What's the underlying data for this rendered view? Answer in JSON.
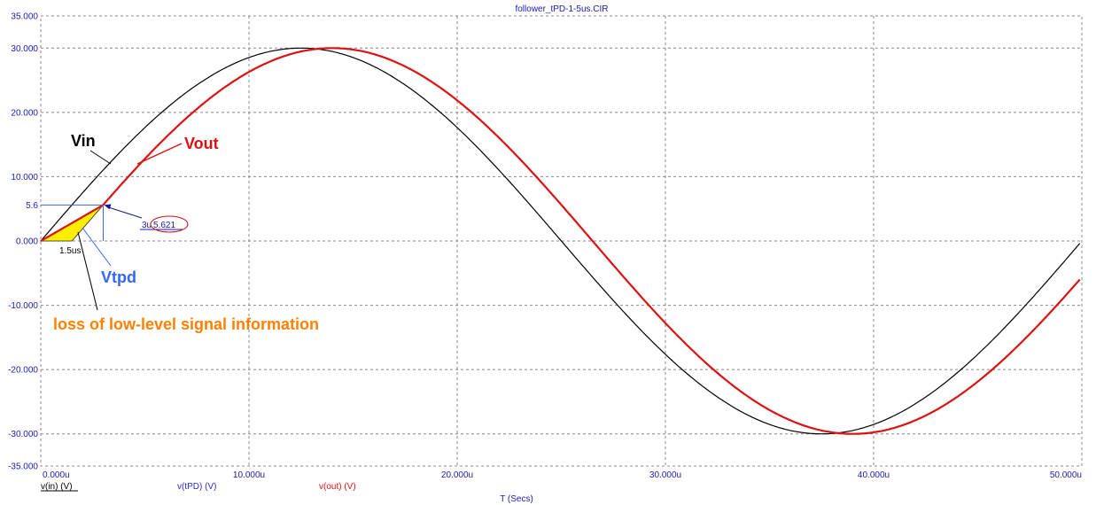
{
  "window": {
    "title": "follower_tPD-1-5us.CIR"
  },
  "chart_data": {
    "type": "line",
    "title": "follower_tPD-1-5us.CIR",
    "xlabel": "T (Secs)",
    "ylabel": "",
    "xlim": [
      0,
      50
    ],
    "ylim": [
      -35,
      35
    ],
    "x_unit": "us",
    "x_ticks": [
      0,
      10,
      20,
      30,
      40,
      50
    ],
    "x_tick_labels": [
      "0.000u",
      "10.000u",
      "20.000u",
      "30.000u",
      "40.000u",
      "50.000u"
    ],
    "y_ticks": [
      35,
      30,
      20,
      10,
      5.6,
      0,
      -10,
      -20,
      -30,
      -35
    ],
    "y_tick_labels": [
      "35.000",
      "30.000",
      "20.000",
      "10.000",
      "5.6",
      "0.000",
      "-10.000",
      "-20.000",
      "-30.000",
      "-35.000"
    ],
    "grid": true,
    "legend_placement": "bottom",
    "series": [
      {
        "name": "v(in) (V)",
        "color": "#000000",
        "amplitude": 30,
        "period_us": 50,
        "delay_us": 0
      },
      {
        "name": "v(out) (V)",
        "color": "#dd1111",
        "amplitude": 30,
        "period_us": 50,
        "delay_us": 1.5
      }
    ],
    "legend": [
      {
        "name": "v(in) (V)",
        "color": "#000000"
      },
      {
        "name": "v(tPD) (V)",
        "color": "#2a2ad0"
      },
      {
        "name": "v(out) (V)",
        "color": "#dd1111"
      }
    ],
    "annotations": {
      "vin": "Vin",
      "vout": "Vout",
      "vtpd": "Vtpd",
      "loss": "loss of low-level signal information",
      "cursor_x": "3u",
      "cursor_y": "5.621",
      "delay": "1.5us",
      "level": "5.6"
    },
    "colors": {
      "axis_text": "#1a1ab0",
      "grid": "#888888",
      "vin": "#000000",
      "vout": "#dd1111",
      "vtpd": "#3366ff",
      "loss": "#ff8000",
      "fill": "#ffee00"
    }
  }
}
